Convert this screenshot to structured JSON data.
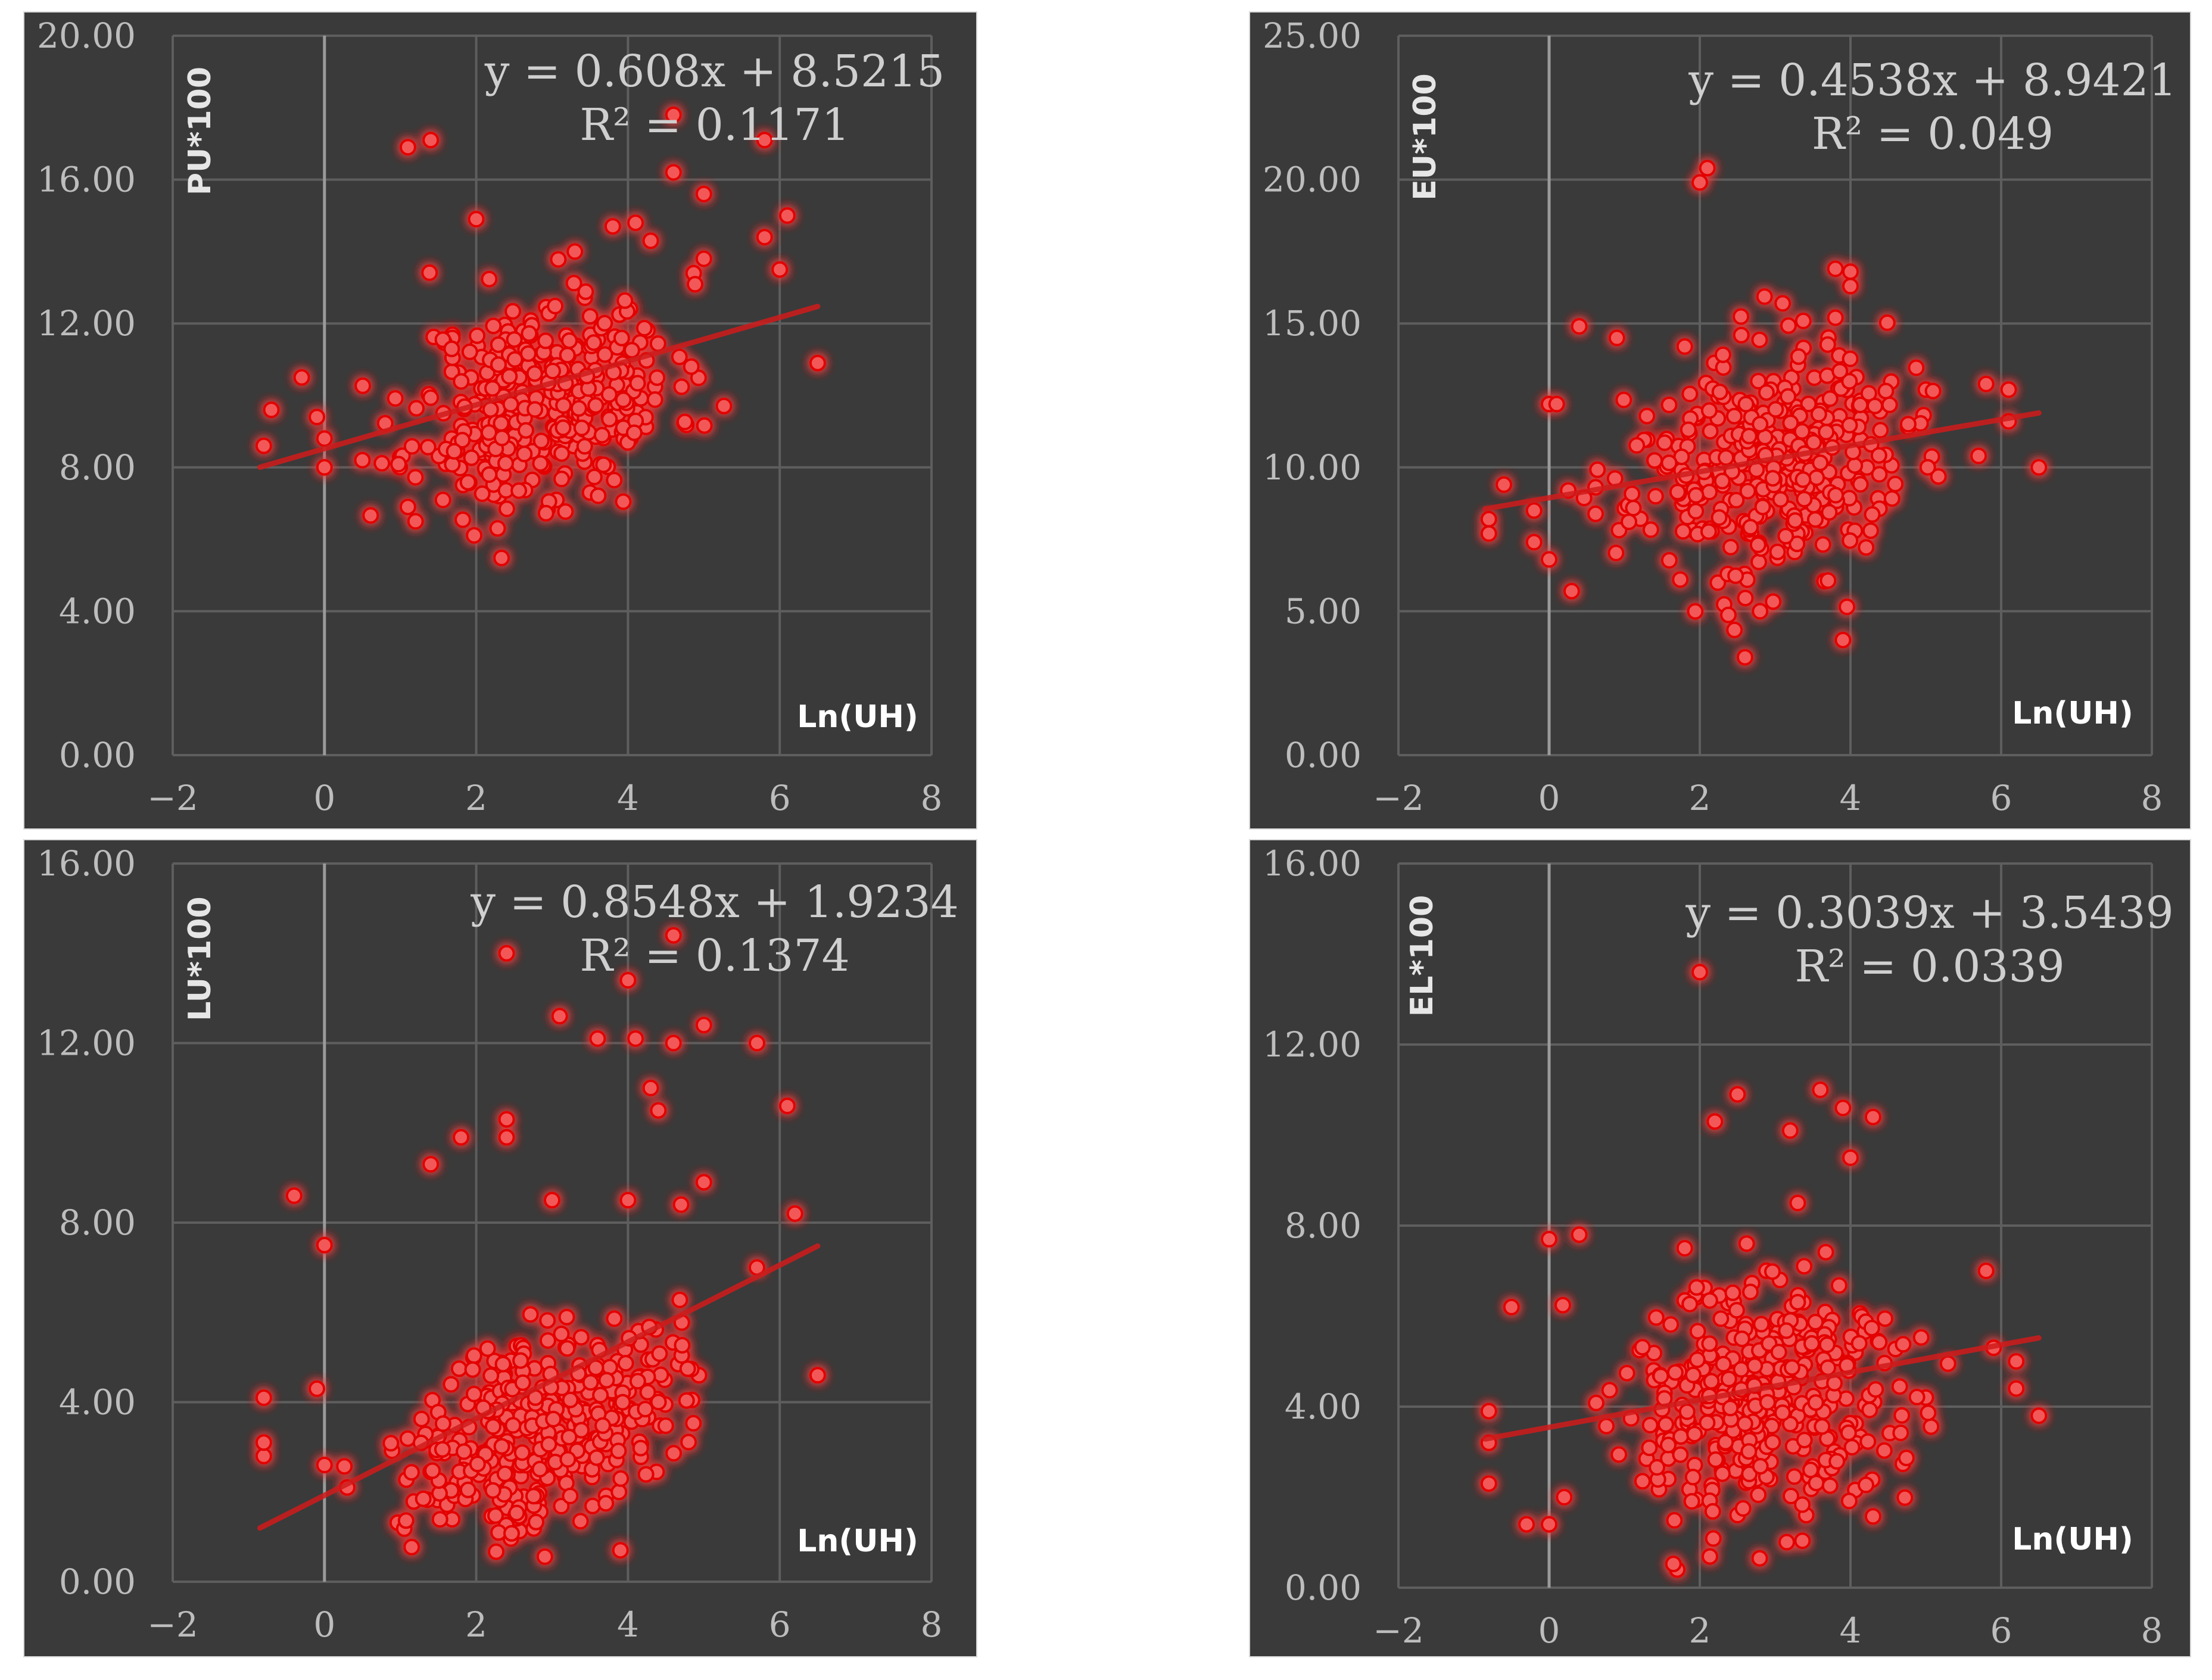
{
  "colors": {
    "background": "#3a3a3a",
    "marker": "#ff6b6b",
    "marker_glow": "#e30000",
    "trendline": "#d11b1b",
    "grid": "#5e5e5e",
    "text": "#c8c8c8"
  },
  "chart_data": [
    {
      "type": "scatter",
      "ylabel": "PU*100",
      "xlabel": "Ln(UH)",
      "xlim": [
        -2,
        8
      ],
      "ylim": [
        0,
        20
      ],
      "x_ticks": [
        "−2",
        "0",
        "2",
        "4",
        "6",
        "8"
      ],
      "y_ticks": [
        "0.00",
        "4.00",
        "8.00",
        "12.00",
        "16.00",
        "20.00"
      ],
      "equation": "y = 0.608x + 8.5215",
      "r_squared": "R² = 0.1171",
      "trendline": {
        "slope": 0.608,
        "intercept": 8.5215,
        "x_range": [
          -0.85,
          6.5
        ]
      },
      "cluster": {
        "n": 380,
        "center": [
          2.9,
          9.9
        ],
        "spread": [
          0.85,
          1.4
        ],
        "seed": 11
      },
      "points": [
        [
          1.1,
          16.9
        ],
        [
          1.4,
          17.1
        ],
        [
          4.6,
          17.8
        ],
        [
          5.8,
          17.1
        ],
        [
          4.6,
          16.2
        ],
        [
          5.0,
          15.6
        ],
        [
          6.1,
          15.0
        ],
        [
          5.8,
          14.4
        ],
        [
          6.0,
          13.5
        ],
        [
          5.0,
          13.8
        ],
        [
          6.5,
          10.9
        ],
        [
          -0.8,
          8.6
        ],
        [
          -0.7,
          9.6
        ],
        [
          -0.3,
          10.5
        ],
        [
          0.0,
          8.0
        ],
        [
          0.0,
          8.8
        ],
        [
          -0.1,
          9.4
        ],
        [
          1.2,
          6.5
        ],
        [
          1.1,
          6.9
        ],
        [
          0.5,
          8.2
        ],
        [
          2.0,
          14.9
        ],
        [
          3.3,
          14.0
        ],
        [
          3.8,
          14.7
        ],
        [
          4.1,
          14.8
        ],
        [
          4.3,
          14.3
        ],
        [
          1.6,
          8.1
        ],
        [
          2.3,
          7.2
        ],
        [
          3.5,
          7.3
        ]
      ]
    },
    {
      "type": "scatter",
      "ylabel": "EU*100",
      "xlabel": "Ln(UH)",
      "xlim": [
        -2,
        8
      ],
      "ylim": [
        0,
        25
      ],
      "x_ticks": [
        "−2",
        "0",
        "2",
        "4",
        "6",
        "8"
      ],
      "y_ticks": [
        "0.00",
        "5.00",
        "10.00",
        "15.00",
        "20.00",
        "25.00"
      ],
      "equation": "y = 0.4538x + 8.9421",
      "r_squared": "R² = 0.049",
      "trendline": {
        "slope": 0.4538,
        "intercept": 8.9421,
        "x_range": [
          -0.85,
          6.5
        ]
      },
      "cluster": {
        "n": 380,
        "center": [
          2.9,
          10.1
        ],
        "spread": [
          0.9,
          1.9
        ],
        "seed": 23
      },
      "points": [
        [
          2.0,
          19.9
        ],
        [
          2.1,
          20.4
        ],
        [
          3.8,
          16.9
        ],
        [
          4.0,
          16.8
        ],
        [
          4.0,
          16.3
        ],
        [
          3.8,
          15.2
        ],
        [
          3.1,
          15.7
        ],
        [
          0.4,
          14.9
        ],
        [
          0.9,
          14.5
        ],
        [
          1.8,
          14.2
        ],
        [
          0.0,
          12.2
        ],
        [
          0.1,
          12.2
        ],
        [
          -0.8,
          8.2
        ],
        [
          -0.8,
          7.7
        ],
        [
          -0.6,
          9.4
        ],
        [
          -0.2,
          8.5
        ],
        [
          -0.2,
          7.4
        ],
        [
          0.0,
          6.8
        ],
        [
          0.3,
          5.7
        ],
        [
          2.6,
          3.4
        ],
        [
          3.9,
          4.0
        ],
        [
          2.8,
          5.0
        ],
        [
          5.7,
          10.4
        ],
        [
          5.8,
          12.9
        ],
        [
          6.1,
          12.7
        ],
        [
          6.1,
          11.6
        ],
        [
          6.5,
          10.0
        ],
        [
          5.0,
          12.7
        ]
      ]
    },
    {
      "type": "scatter",
      "ylabel": "LU*100",
      "xlabel": "Ln(UH)",
      "xlim": [
        -2,
        8
      ],
      "ylim": [
        0,
        16
      ],
      "x_ticks": [
        "−2",
        "0",
        "2",
        "4",
        "6",
        "8"
      ],
      "y_ticks": [
        "0.00",
        "4.00",
        "8.00",
        "12.00",
        "16.00"
      ],
      "equation": "y = 0.8548x + 1.9234",
      "r_squared": "R² = 0.1374",
      "trendline": {
        "slope": 0.8548,
        "intercept": 1.9234,
        "x_range": [
          -0.85,
          6.5
        ]
      },
      "cluster": {
        "n": 380,
        "center": [
          2.9,
          3.5
        ],
        "spread": [
          0.85,
          1.05
        ],
        "seed": 37
      },
      "points": [
        [
          2.4,
          14.0
        ],
        [
          4.6,
          14.4
        ],
        [
          4.0,
          13.4
        ],
        [
          3.1,
          12.6
        ],
        [
          3.6,
          12.1
        ],
        [
          4.1,
          12.1
        ],
        [
          4.6,
          12.0
        ],
        [
          5.0,
          12.4
        ],
        [
          5.7,
          12.0
        ],
        [
          4.3,
          11.0
        ],
        [
          4.4,
          10.5
        ],
        [
          6.1,
          10.6
        ],
        [
          1.8,
          9.9
        ],
        [
          1.4,
          9.3
        ],
        [
          2.4,
          10.3
        ],
        [
          2.4,
          9.9
        ],
        [
          -0.4,
          8.6
        ],
        [
          0.0,
          7.5
        ],
        [
          3.0,
          8.5
        ],
        [
          4.0,
          8.5
        ],
        [
          4.7,
          8.4
        ],
        [
          5.0,
          8.9
        ],
        [
          6.2,
          8.2
        ],
        [
          5.7,
          7.0
        ],
        [
          6.5,
          4.6
        ],
        [
          3.9,
          0.7
        ],
        [
          -0.8,
          2.8
        ],
        [
          -0.8,
          4.1
        ],
        [
          -0.8,
          3.1
        ],
        [
          0.0,
          2.6
        ],
        [
          0.3,
          2.1
        ],
        [
          -0.1,
          4.3
        ]
      ]
    },
    {
      "type": "scatter",
      "ylabel": "EL*100",
      "xlabel": "Ln(UH)",
      "xlim": [
        -2,
        8
      ],
      "ylim": [
        0,
        16
      ],
      "x_ticks": [
        "−2",
        "0",
        "2",
        "4",
        "6",
        "8"
      ],
      "y_ticks": [
        "0.00",
        "4.00",
        "8.00",
        "12.00",
        "16.00"
      ],
      "equation": "y = 0.3039x + 3.5439",
      "r_squared": "R² = 0.0339",
      "trendline": {
        "slope": 0.3039,
        "intercept": 3.5439,
        "x_range": [
          -0.85,
          6.5
        ]
      },
      "cluster": {
        "n": 380,
        "center": [
          2.9,
          4.1
        ],
        "spread": [
          0.9,
          1.35
        ],
        "seed": 51
      },
      "points": [
        [
          2.0,
          13.6
        ],
        [
          2.5,
          10.9
        ],
        [
          2.2,
          10.3
        ],
        [
          3.2,
          10.1
        ],
        [
          3.6,
          11.0
        ],
        [
          3.9,
          10.6
        ],
        [
          4.3,
          10.4
        ],
        [
          4.0,
          9.5
        ],
        [
          3.3,
          8.5
        ],
        [
          0.0,
          7.7
        ],
        [
          0.4,
          7.8
        ],
        [
          -0.5,
          6.2
        ],
        [
          -0.8,
          3.9
        ],
        [
          -0.8,
          3.2
        ],
        [
          -0.8,
          2.3
        ],
        [
          -0.3,
          1.4
        ],
        [
          0.0,
          1.4
        ],
        [
          0.2,
          2.0
        ],
        [
          1.7,
          0.4
        ],
        [
          5.8,
          7.0
        ],
        [
          5.9,
          5.3
        ],
        [
          6.2,
          5.0
        ],
        [
          6.2,
          4.4
        ],
        [
          6.5,
          3.8
        ],
        [
          5.0,
          4.2
        ],
        [
          1.8,
          7.5
        ]
      ]
    }
  ]
}
